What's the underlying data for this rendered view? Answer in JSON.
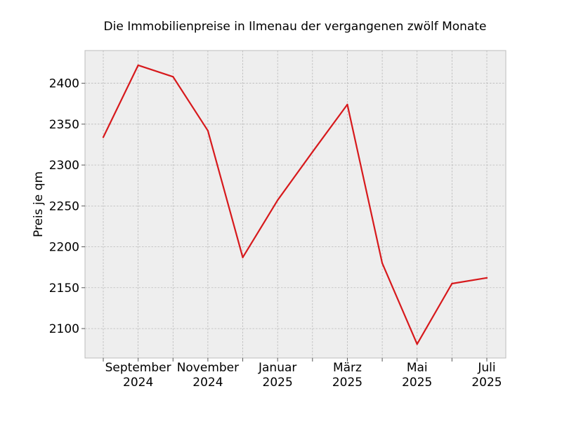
{
  "chart_data": {
    "type": "line",
    "title": "Die Immobilienpreise in Ilmenau der vergangenen zwölf Monate",
    "xlabel": "",
    "ylabel": "Preis je qm",
    "x": [
      "2024-08",
      "2024-09",
      "2024-10",
      "2024-11",
      "2024-12",
      "2025-01",
      "2025-02",
      "2025-03",
      "2025-04",
      "2025-05",
      "2025-06",
      "2025-07"
    ],
    "series": [
      {
        "values": [
          2334,
          2422,
          2408,
          2342,
          2187,
          2257,
          2316,
          2374,
          2180,
          2081,
          2155,
          2162
        ]
      }
    ],
    "x_ticks": [
      {
        "x": "2024-09",
        "line1": "September",
        "line2": "2024"
      },
      {
        "x": "2024-11",
        "line1": "November",
        "line2": "2024"
      },
      {
        "x": "2025-01",
        "line1": "Januar",
        "line2": "2025"
      },
      {
        "x": "2025-03",
        "line1": "März",
        "line2": "2025"
      },
      {
        "x": "2025-05",
        "line1": "Mai",
        "line2": "2025"
      },
      {
        "x": "2025-07",
        "line1": "Juli",
        "line2": "2025"
      }
    ],
    "y_ticks": [
      2100,
      2150,
      2200,
      2250,
      2300,
      2350,
      2400
    ],
    "ylim": [
      2064,
      2440
    ],
    "grid": true,
    "legend": "none",
    "colors": {
      "line": "#d7191c",
      "plot_background": "#eeeeee",
      "grid": "#b0b0b0",
      "spine": "#bcbcbc"
    }
  }
}
